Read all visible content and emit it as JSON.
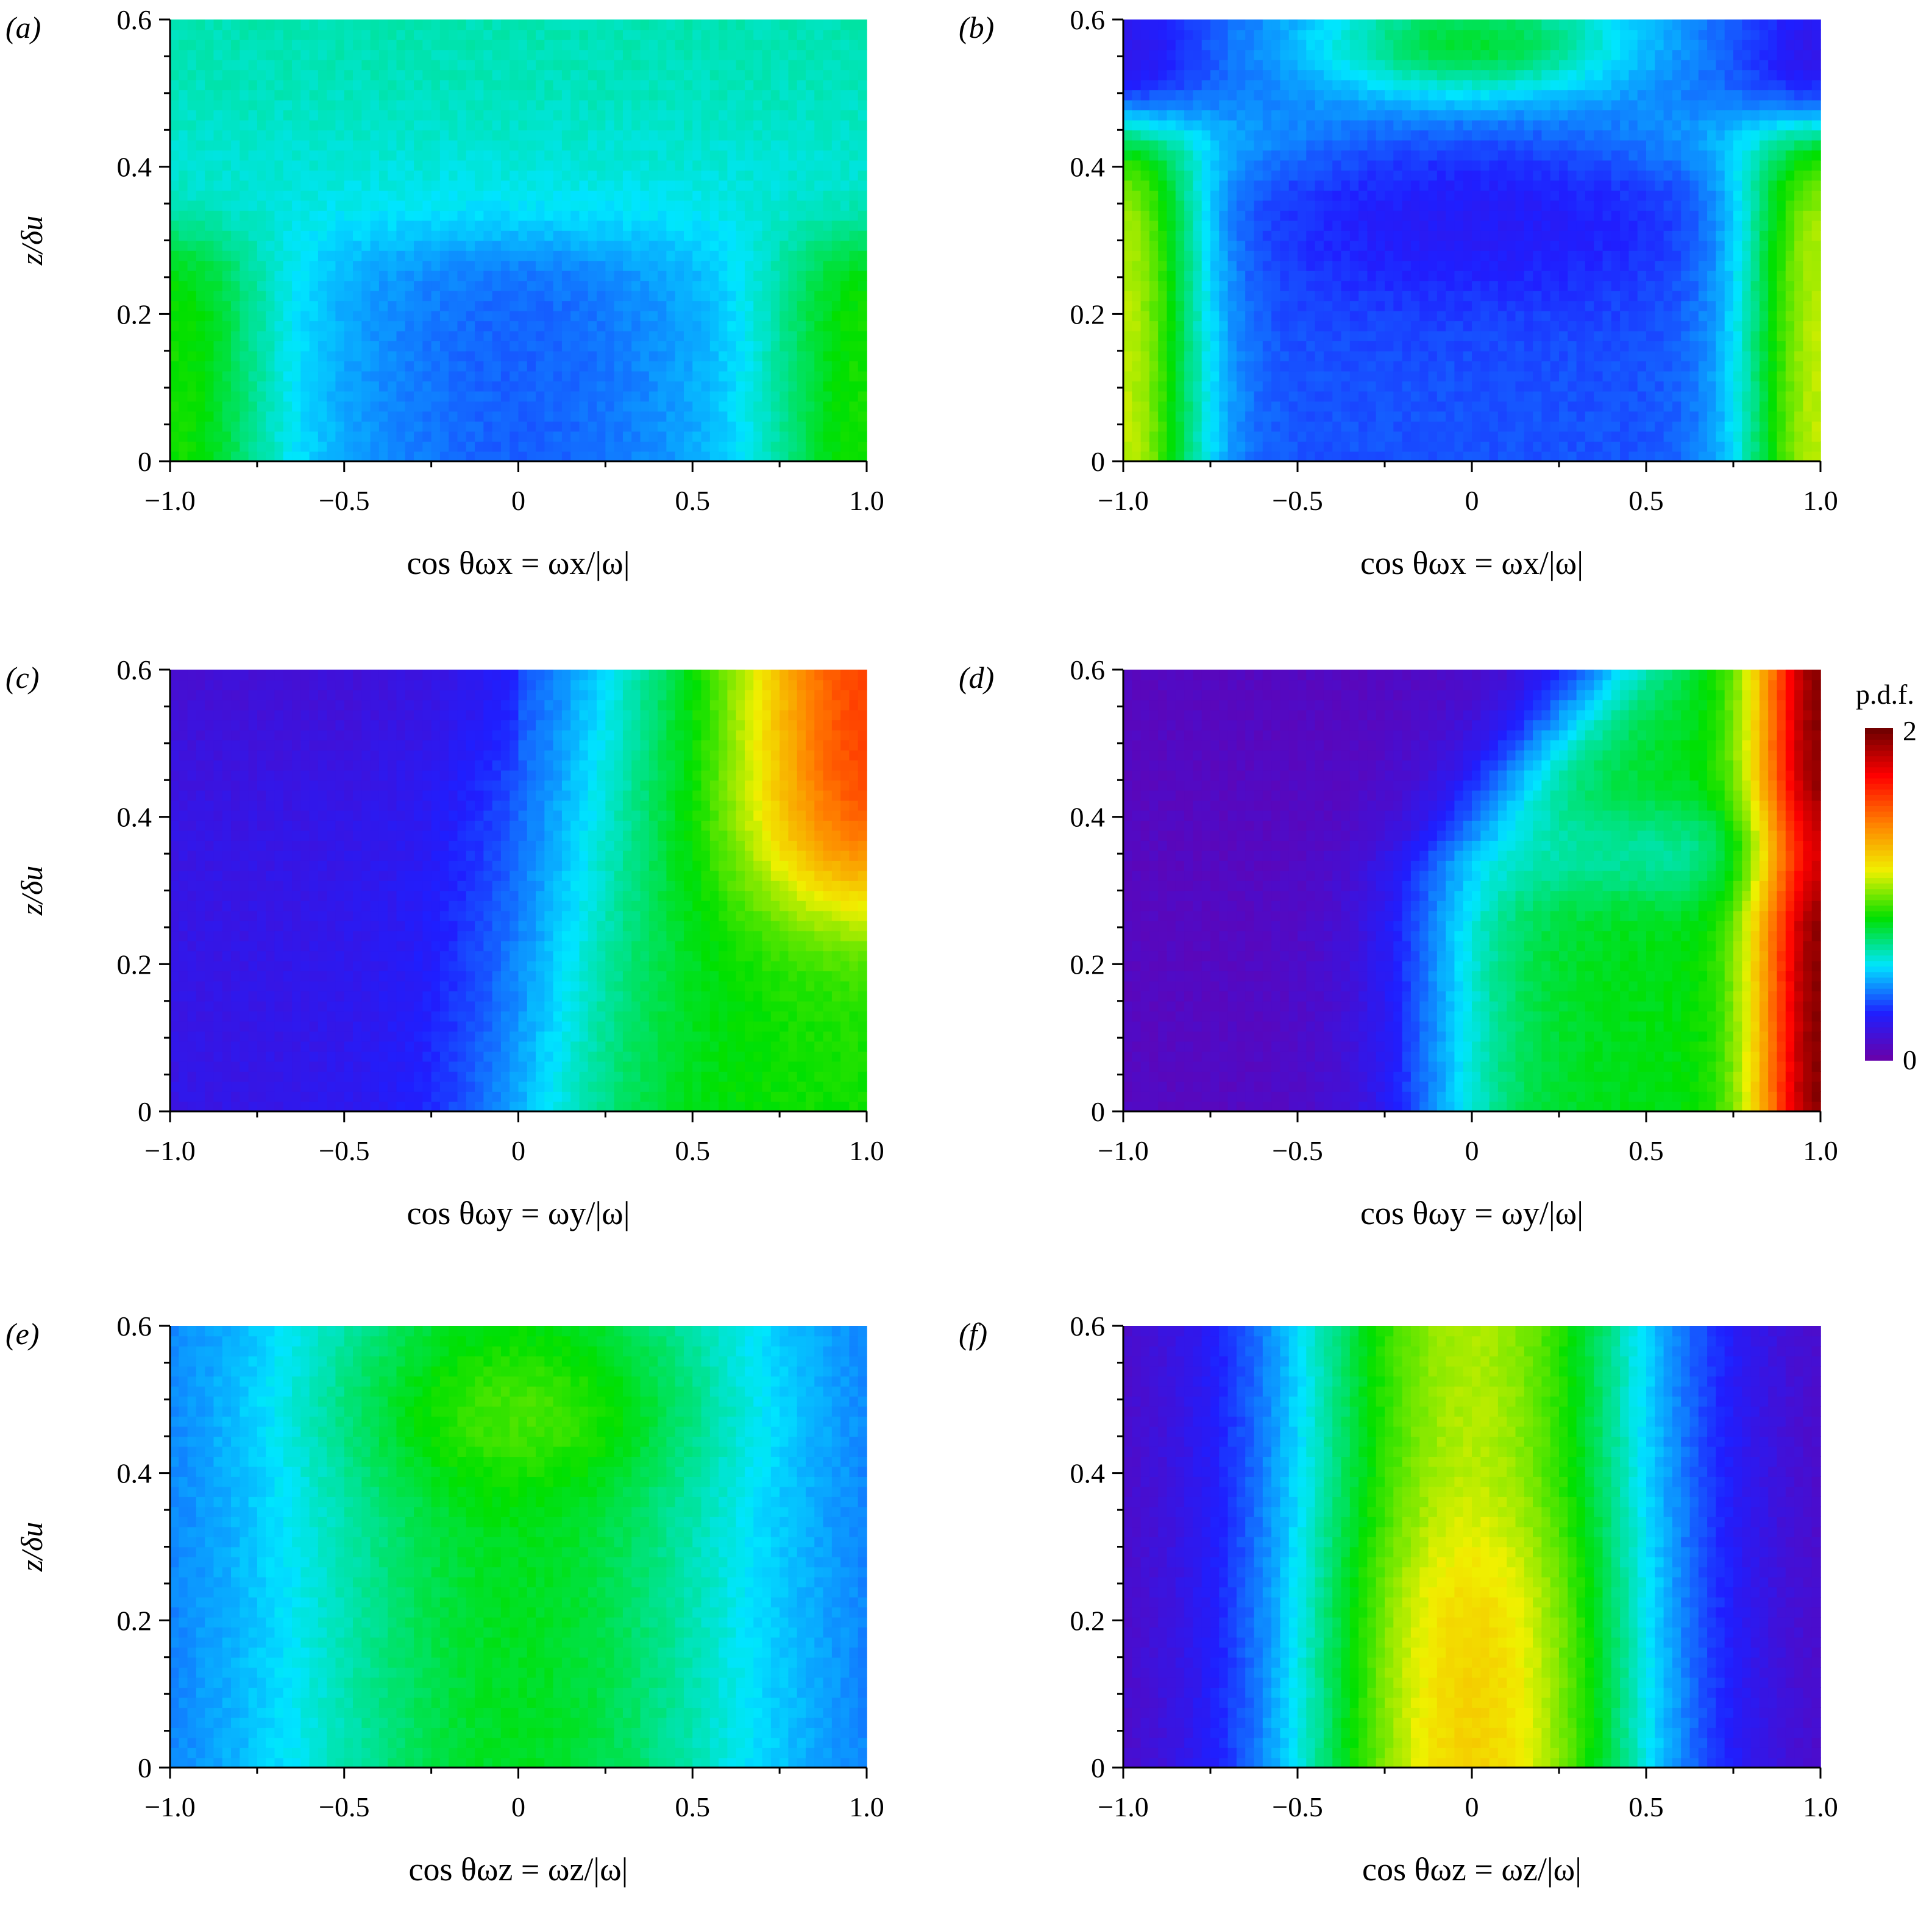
{
  "figure": {
    "colorbar": {
      "title": "p.d.f.",
      "max_label": "2",
      "min_label": "0",
      "range": [
        0,
        2
      ],
      "colors": [
        "#6a00a8",
        "#1f1fff",
        "#00e5ff",
        "#00e000",
        "#f0f000",
        "#ff8000",
        "#ff0000",
        "#6a0000"
      ]
    },
    "y_axis_label": "z/δu"
  },
  "chart_data": [
    {
      "panel": "(a)",
      "type": "heatmap",
      "xlabel": "cos θωx = ωx/|ω|",
      "ylabel": "z/δu",
      "xlim": [
        -1.0,
        1.0
      ],
      "ylim": [
        0,
        0.6
      ],
      "xticks": [
        "−1.0",
        "−0.5",
        "0",
        "0.5",
        "1.0"
      ],
      "yticks": [
        "0",
        "0.2",
        "0.4",
        "0.6"
      ],
      "approx_pdf_levels": {
        "edges_low_z": 0.9,
        "center_low_z": 0.45,
        "upper_band": 0.6
      }
    },
    {
      "panel": "(b)",
      "type": "heatmap",
      "xlabel": "cos θωx = ωx/|ω|",
      "ylabel": "z/δu",
      "xlim": [
        -1.0,
        1.0
      ],
      "ylim": [
        0,
        0.6
      ],
      "xticks": [
        "−1.0",
        "−0.5",
        "0",
        "0.5",
        "1.0"
      ],
      "yticks": [
        "0",
        "0.2",
        "0.4",
        "0.6"
      ],
      "approx_pdf_levels": {
        "edges_low_z": 1.1,
        "center": 0.35,
        "top_center": 0.9
      }
    },
    {
      "panel": "(c)",
      "type": "heatmap",
      "xlabel": "cos θωy = ωy/|ω|",
      "ylabel": "z/δu",
      "xlim": [
        -1.0,
        1.0
      ],
      "ylim": [
        0,
        0.6
      ],
      "xticks": [
        "−1.0",
        "−0.5",
        "0",
        "0.5",
        "1.0"
      ],
      "yticks": [
        "0",
        "0.2",
        "0.4",
        "0.6"
      ],
      "approx_pdf_levels": {
        "negative_side": 0.1,
        "positive_side": 0.9,
        "upper_right": 1.6
      }
    },
    {
      "panel": "(d)",
      "type": "heatmap",
      "xlabel": "cos θωy = ωy/|ω|",
      "ylabel": "z/δu",
      "xlim": [
        -1.0,
        1.0
      ],
      "ylim": [
        0,
        0.6
      ],
      "xticks": [
        "−1.0",
        "−0.5",
        "0",
        "0.5",
        "1.0"
      ],
      "yticks": [
        "0",
        "0.2",
        "0.4",
        "0.6"
      ],
      "approx_pdf_levels": {
        "negative_side": 0.05,
        "positive_side": 0.9,
        "right_edge": 2.0
      }
    },
    {
      "panel": "(e)",
      "type": "heatmap",
      "xlabel": "cos θωz = ωz/|ω|",
      "ylabel": "z/δu",
      "xlim": [
        -1.0,
        1.0
      ],
      "ylim": [
        0,
        0.6
      ],
      "xticks": [
        "−1.0",
        "−0.5",
        "0",
        "0.5",
        "1.0"
      ],
      "yticks": [
        "0",
        "0.2",
        "0.4",
        "0.6"
      ],
      "approx_pdf_levels": {
        "edges": 0.35,
        "center": 0.75
      }
    },
    {
      "panel": "(f)",
      "type": "heatmap",
      "xlabel": "cos θωz = ωz/|ω|",
      "ylabel": "z/δu",
      "xlim": [
        -1.0,
        1.0
      ],
      "ylim": [
        0,
        0.6
      ],
      "xticks": [
        "−1.0",
        "−0.5",
        "0",
        "0.5",
        "1.0"
      ],
      "yticks": [
        "0",
        "0.2",
        "0.4",
        "0.6"
      ],
      "approx_pdf_levels": {
        "edges": 0.1,
        "center": 1.0
      }
    }
  ]
}
